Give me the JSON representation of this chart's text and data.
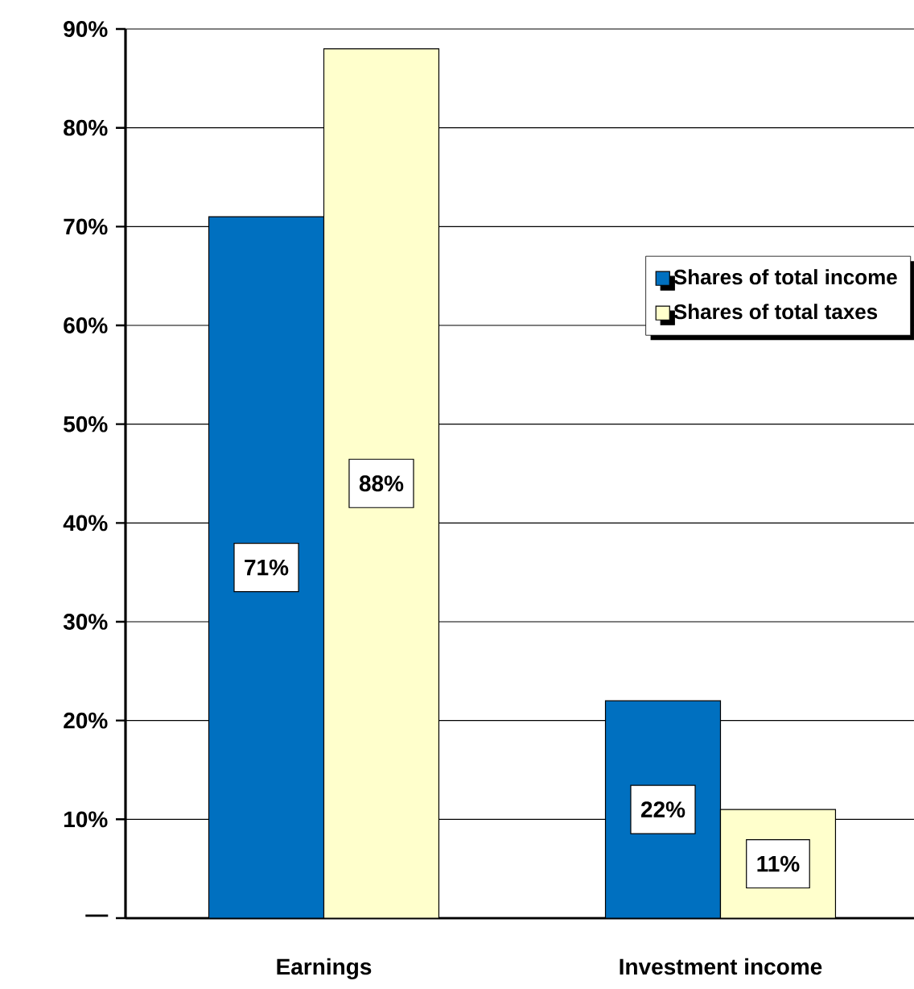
{
  "chart_data": {
    "type": "bar",
    "categories": [
      "Earnings",
      "Investment income"
    ],
    "series": [
      {
        "name": "Shares of total income",
        "color": "#0070c0",
        "values": [
          71,
          22
        ],
        "value_labels": [
          "71%",
          "22%"
        ]
      },
      {
        "name": "Shares of total taxes",
        "color": "#ffffcc",
        "values": [
          88,
          11
        ],
        "value_labels": [
          "88%",
          "11%"
        ]
      }
    ],
    "ylim": [
      0,
      90
    ],
    "yticks": [
      {
        "value": 0,
        "label": "—"
      },
      {
        "value": 10,
        "label": "10%"
      },
      {
        "value": 20,
        "label": "20%"
      },
      {
        "value": 30,
        "label": "30%"
      },
      {
        "value": 40,
        "label": "40%"
      },
      {
        "value": 50,
        "label": "50%"
      },
      {
        "value": 60,
        "label": "60%"
      },
      {
        "value": 70,
        "label": "70%"
      },
      {
        "value": 80,
        "label": "80%"
      },
      {
        "value": 90,
        "label": "90%"
      }
    ],
    "grid": "y",
    "legend": "right"
  }
}
